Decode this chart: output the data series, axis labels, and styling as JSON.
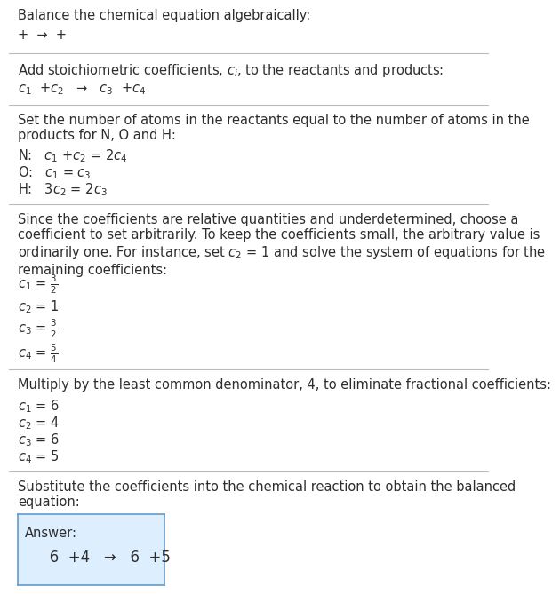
{
  "title": "Balance the chemical equation algebraically:",
  "line1": "+  →  +",
  "section2_title": "Add stoichiometric coefficients, $c_i$, to the reactants and products:",
  "line2": "$c_1$  +$c_2$   →   $c_3$  +$c_4$",
  "section3_title": "Set the number of atoms in the reactants equal to the number of atoms in the\nproducts for N, O and H:",
  "eq_N": "N:   $c_1$ +$c_2$ = 2$c_4$",
  "eq_O": "O:   $c_1$ = $c_3$",
  "eq_H": "H:   3$c_2$ = 2$c_3$",
  "section4_para": "Since the coefficients are relative quantities and underdetermined, choose a\ncoefficient to set arbitrarily. To keep the coefficients small, the arbitrary value is\nordinarily one. For instance, set $c_2$ = 1 and solve the system of equations for the\nremaining coefficients:",
  "sol1_c1": "$c_1$ = $\\frac{3}{2}$",
  "sol1_c2": "$c_2$ = 1",
  "sol1_c3": "$c_3$ = $\\frac{3}{2}$",
  "sol1_c4": "$c_4$ = $\\frac{5}{4}$",
  "section5_title": "Multiply by the least common denominator, 4, to eliminate fractional coefficients:",
  "sol2_c1": "$c_1$ = 6",
  "sol2_c2": "$c_2$ = 4",
  "sol2_c3": "$c_3$ = 6",
  "sol2_c4": "$c_4$ = 5",
  "section6_title": "Substitute the coefficients into the chemical reaction to obtain the balanced\nequation:",
  "answer_label": "Answer:",
  "answer_line": "   6  +4   →   6  +5",
  "bg_color": "#ffffff",
  "text_color": "#2d2d2d",
  "line_color": "#bbbbbb",
  "answer_box_facecolor": "#ddeeff",
  "answer_box_edgecolor": "#6699cc",
  "font_size": 10.5,
  "answer_font_size": 12
}
